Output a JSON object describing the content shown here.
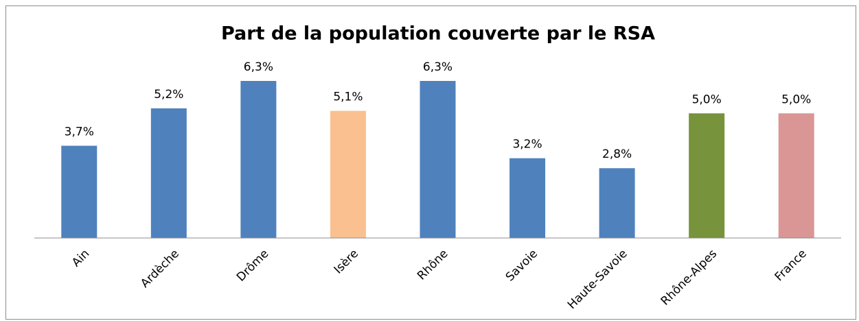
{
  "chart_data": {
    "type": "bar",
    "title": "Part de la population couverte par le RSA",
    "categories": [
      "Ain",
      "Ardèche",
      "Drôme",
      "Isère",
      "Rhône",
      "Savoie",
      "Haute-Savoie",
      "Rhône-Alpes",
      "France"
    ],
    "values": [
      3.7,
      5.2,
      6.3,
      5.1,
      6.3,
      3.2,
      2.8,
      5.0,
      5.0
    ],
    "value_labels": [
      "3,7%",
      "5,2%",
      "6,3%",
      "5,1%",
      "6,3%",
      "3,2%",
      "2,8%",
      "5,0%",
      "5,0%"
    ],
    "colors": [
      "#4f81bd",
      "#4f81bd",
      "#4f81bd",
      "#fac090",
      "#4f81bd",
      "#4f81bd",
      "#4f81bd",
      "#77933c",
      "#d99694"
    ]
  }
}
